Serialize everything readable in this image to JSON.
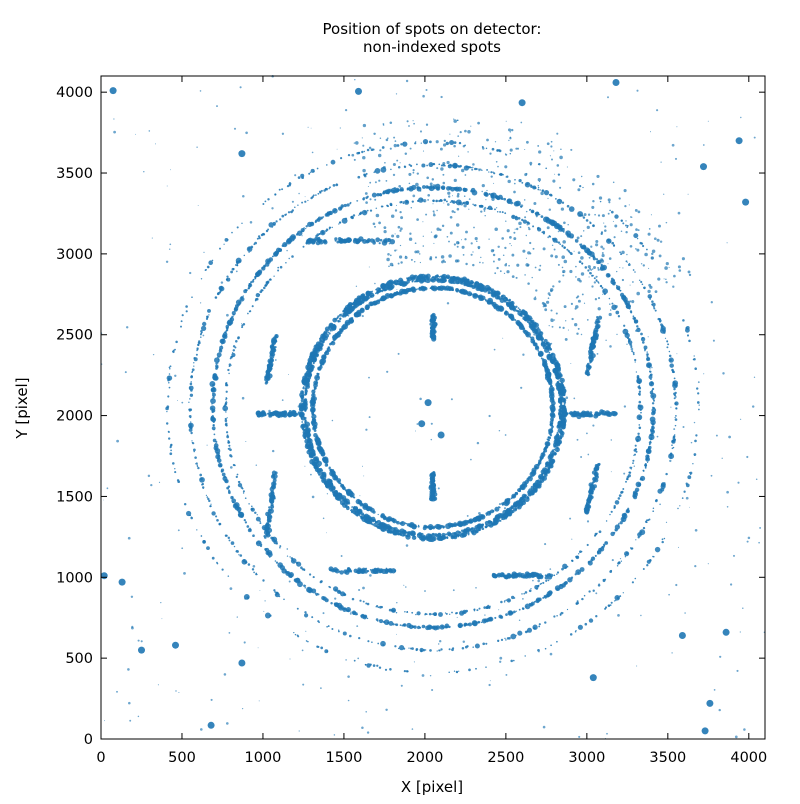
{
  "chart_data": {
    "type": "scatter",
    "title": [
      "Position of spots on detector:",
      "non-indexed spots"
    ],
    "xlabel": "X [pixel]",
    "ylabel": "Y [pixel]",
    "xlim": [
      0,
      4100
    ],
    "ylim": [
      0,
      4100
    ],
    "xticks": [
      0,
      500,
      1000,
      1500,
      2000,
      2500,
      3000,
      3500,
      4000
    ],
    "yticks": [
      0,
      500,
      1000,
      1500,
      2000,
      2500,
      3000,
      3500,
      4000
    ],
    "grid": false,
    "legend": "none",
    "marker_color": "#1f77b4",
    "beam_center": [
      2050,
      2050
    ],
    "rings": [
      {
        "radius": 740,
        "density": "high"
      },
      {
        "radius": 790,
        "density": "high"
      },
      {
        "radius": 810,
        "density": "high"
      },
      {
        "radius": 1280,
        "density": "medium"
      },
      {
        "radius": 1360,
        "density": "high"
      },
      {
        "radius": 1500,
        "density": "medium"
      },
      {
        "radius": 1640,
        "density": "low"
      }
    ],
    "streaks": [
      {
        "x": [
          1280,
          1800
        ],
        "y": [
          3080,
          3080
        ]
      },
      {
        "x": [
          1420,
          1820
        ],
        "y": [
          1040,
          1040
        ]
      },
      {
        "x": [
          2420,
          2780
        ],
        "y": [
          1010,
          1010
        ]
      },
      {
        "x": [
          960,
          1230
        ],
        "y": [
          2010,
          2010
        ]
      },
      {
        "x": [
          2860,
          3180
        ],
        "y": [
          2010,
          2010
        ]
      },
      {
        "x": [
          2050,
          2050
        ],
        "y": [
          2480,
          2620
        ]
      },
      {
        "x": [
          2050,
          2050
        ],
        "y": [
          1480,
          1640
        ]
      },
      {
        "x": [
          1020,
          1080
        ],
        "y": [
          1250,
          1650
        ]
      },
      {
        "x": [
          1020,
          1080
        ],
        "y": [
          2200,
          2500
        ]
      },
      {
        "x": [
          3000,
          3070
        ],
        "y": [
          1400,
          1700
        ]
      },
      {
        "x": [
          3000,
          3070
        ],
        "y": [
          2250,
          2600
        ]
      }
    ],
    "highlighted_spots": [
      {
        "x": 75,
        "y": 4010,
        "size": 3.5
      },
      {
        "x": 1590,
        "y": 4005,
        "size": 3.5
      },
      {
        "x": 2600,
        "y": 3935,
        "size": 3.5
      },
      {
        "x": 3180,
        "y": 4060,
        "size": 3.5
      },
      {
        "x": 3720,
        "y": 3540,
        "size": 3.5
      },
      {
        "x": 3980,
        "y": 3320,
        "size": 3.5
      },
      {
        "x": 3940,
        "y": 3700,
        "size": 3.5
      },
      {
        "x": 870,
        "y": 3620,
        "size": 3.5
      },
      {
        "x": 250,
        "y": 550,
        "size": 3.5
      },
      {
        "x": 460,
        "y": 580,
        "size": 3.5
      },
      {
        "x": 680,
        "y": 85,
        "size": 3.5
      },
      {
        "x": 870,
        "y": 470,
        "size": 3.5
      },
      {
        "x": 3040,
        "y": 380,
        "size": 3.5
      },
      {
        "x": 3730,
        "y": 50,
        "size": 3.5
      },
      {
        "x": 3760,
        "y": 220,
        "size": 3.5
      },
      {
        "x": 3860,
        "y": 660,
        "size": 3.5
      },
      {
        "x": 3590,
        "y": 640,
        "size": 3.5
      },
      {
        "x": 20,
        "y": 1010,
        "size": 3.5
      },
      {
        "x": 130,
        "y": 970,
        "size": 3.5
      },
      {
        "x": 2020,
        "y": 2080,
        "size": 3.5
      },
      {
        "x": 1980,
        "y": 1950,
        "size": 3.5
      },
      {
        "x": 2100,
        "y": 1880,
        "size": 3.5
      }
    ]
  }
}
